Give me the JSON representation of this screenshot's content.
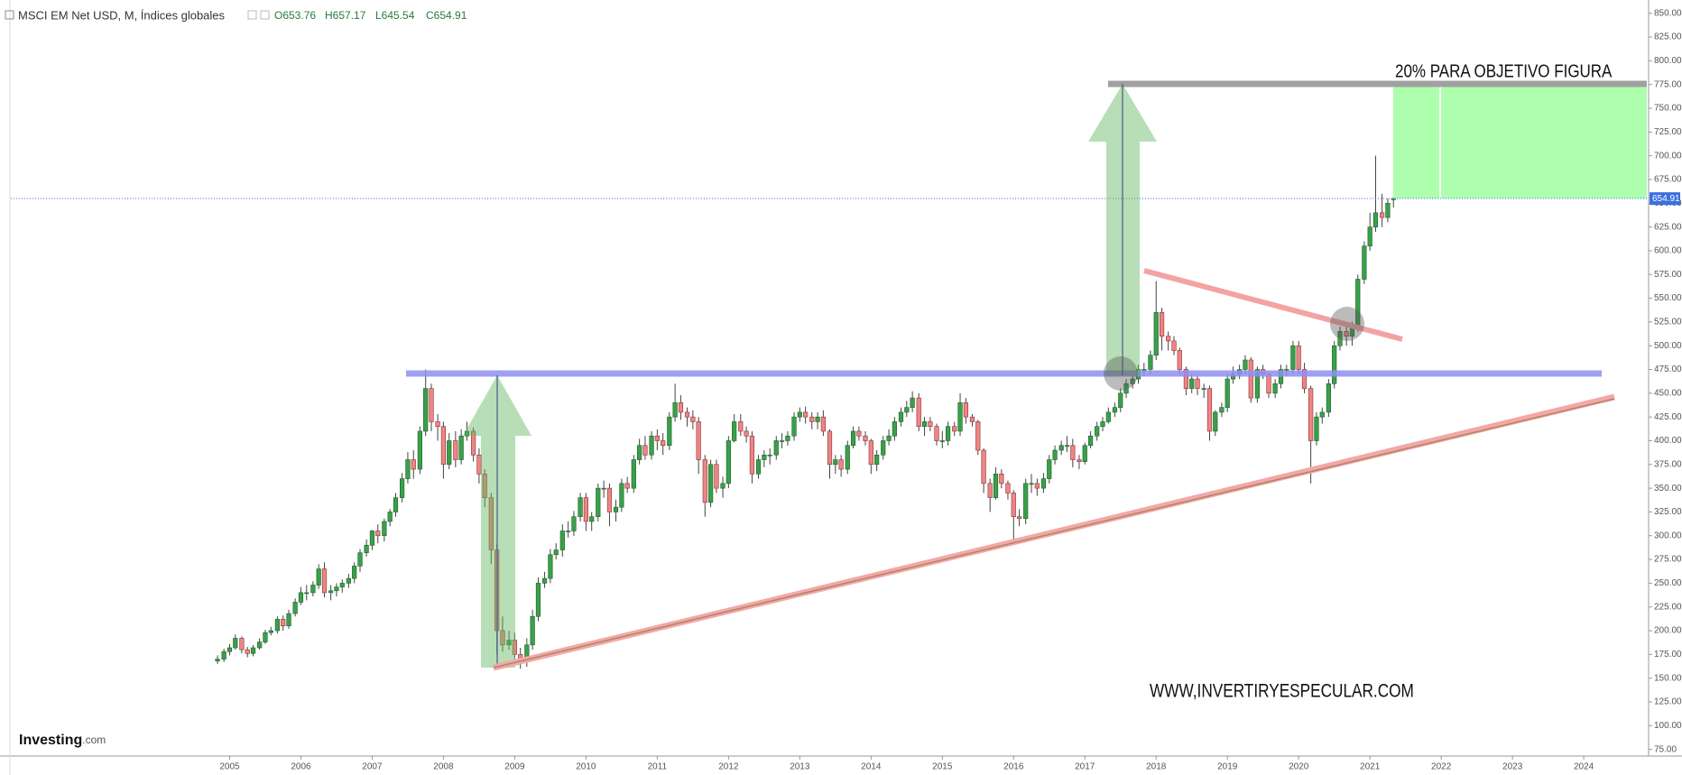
{
  "header": {
    "title": "MSCI EM Net USD, M, Índices globales",
    "ohlc": [
      "O653.76",
      "H657.17",
      "L645.54",
      "C654.91"
    ]
  },
  "chart_data": {
    "type": "candlestick",
    "x": [
      2004.83,
      2004.92,
      2005,
      2005.08,
      2005.17,
      2005.25,
      2005.33,
      2005.42,
      2005.5,
      2005.58,
      2005.67,
      2005.75,
      2005.83,
      2005.92,
      2006,
      2006.08,
      2006.17,
      2006.25,
      2006.33,
      2006.42,
      2006.5,
      2006.58,
      2006.67,
      2006.75,
      2006.83,
      2006.92,
      2007,
      2007.08,
      2007.17,
      2007.25,
      2007.33,
      2007.42,
      2007.5,
      2007.58,
      2007.67,
      2007.75,
      2007.83,
      2007.92,
      2008,
      2008.08,
      2008.17,
      2008.25,
      2008.33,
      2008.42,
      2008.5,
      2008.58,
      2008.67,
      2008.75,
      2008.83,
      2008.92,
      2009,
      2009.08,
      2009.17,
      2009.25,
      2009.33,
      2009.42,
      2009.5,
      2009.58,
      2009.67,
      2009.75,
      2009.83,
      2009.92,
      2010,
      2010.08,
      2010.17,
      2010.25,
      2010.33,
      2010.42,
      2010.5,
      2010.58,
      2010.67,
      2010.75,
      2010.83,
      2010.92,
      2011,
      2011.08,
      2011.17,
      2011.25,
      2011.33,
      2011.42,
      2011.5,
      2011.58,
      2011.67,
      2011.75,
      2011.83,
      2011.92,
      2012,
      2012.08,
      2012.17,
      2012.25,
      2012.33,
      2012.42,
      2012.5,
      2012.58,
      2012.67,
      2012.75,
      2012.83,
      2012.92,
      2013,
      2013.08,
      2013.17,
      2013.25,
      2013.33,
      2013.42,
      2013.5,
      2013.58,
      2013.67,
      2013.75,
      2013.83,
      2013.92,
      2014,
      2014.08,
      2014.17,
      2014.25,
      2014.33,
      2014.42,
      2014.5,
      2014.58,
      2014.67,
      2014.75,
      2014.83,
      2014.92,
      2015,
      2015.08,
      2015.17,
      2015.25,
      2015.33,
      2015.42,
      2015.5,
      2015.58,
      2015.67,
      2015.75,
      2015.83,
      2015.92,
      2016,
      2016.08,
      2016.17,
      2016.25,
      2016.33,
      2016.42,
      2016.5,
      2016.58,
      2016.67,
      2016.75,
      2016.83,
      2016.92,
      2017,
      2017.08,
      2017.17,
      2017.25,
      2017.33,
      2017.42,
      2017.5,
      2017.58,
      2017.67,
      2017.75,
      2017.83,
      2017.92,
      2018,
      2018.08,
      2018.17,
      2018.25,
      2018.33,
      2018.42,
      2018.5,
      2018.58,
      2018.67,
      2018.75,
      2018.83,
      2018.92,
      2019,
      2019.08,
      2019.17,
      2019.25,
      2019.33,
      2019.42,
      2019.5,
      2019.58,
      2019.67,
      2019.75,
      2019.83,
      2019.92,
      2020,
      2020.08,
      2020.17,
      2020.25,
      2020.33,
      2020.42,
      2020.5,
      2020.58,
      2020.67,
      2020.75,
      2020.83,
      2020.92,
      2021,
      2021.08,
      2021.17,
      2021.25,
      2021.33
    ],
    "open": [
      168,
      170,
      178,
      182,
      192,
      180,
      176,
      182,
      188,
      198,
      200,
      212,
      205,
      218,
      230,
      240,
      240,
      248,
      265,
      240,
      242,
      246,
      250,
      255,
      268,
      282,
      290,
      305,
      300,
      315,
      325,
      340,
      360,
      380,
      370,
      410,
      455,
      420,
      415,
      375,
      400,
      380,
      405,
      410,
      385,
      365,
      340,
      285,
      200,
      185,
      190,
      175,
      168,
      185,
      215,
      250,
      255,
      280,
      285,
      305,
      305,
      320,
      340,
      315,
      320,
      350,
      350,
      325,
      330,
      355,
      350,
      380,
      395,
      385,
      405,
      400,
      395,
      425,
      440,
      430,
      425,
      420,
      380,
      335,
      375,
      350,
      355,
      400,
      420,
      410,
      405,
      365,
      380,
      385,
      385,
      400,
      400,
      405,
      425,
      430,
      425,
      420,
      425,
      410,
      375,
      380,
      370,
      395,
      410,
      405,
      400,
      375,
      385,
      400,
      405,
      420,
      430,
      435,
      445,
      415,
      420,
      415,
      400,
      400,
      415,
      410,
      440,
      425,
      420,
      390,
      355,
      340,
      365,
      355,
      345,
      320,
      318,
      355,
      355,
      350,
      360,
      380,
      390,
      395,
      395,
      380,
      378,
      395,
      405,
      415,
      420,
      430,
      435,
      450,
      460,
      465,
      475,
      475,
      490,
      535,
      510,
      505,
      495,
      475,
      455,
      465,
      455,
      455,
      410,
      430,
      435,
      465,
      470,
      475,
      485,
      445,
      475,
      470,
      450,
      460,
      475,
      475,
      500,
      475,
      455,
      400,
      425,
      430,
      460,
      500,
      515,
      510,
      520,
      570,
      605,
      625,
      640,
      635,
      653.76
    ],
    "high": [
      174,
      181,
      186,
      196,
      194,
      183,
      185,
      192,
      201,
      204,
      215,
      216,
      222,
      234,
      246,
      248,
      252,
      270,
      272,
      248,
      250,
      254,
      260,
      272,
      286,
      296,
      306,
      312,
      318,
      328,
      345,
      366,
      388,
      390,
      415,
      475,
      460,
      428,
      420,
      408,
      410,
      412,
      420,
      414,
      392,
      370,
      345,
      292,
      215,
      200,
      198,
      182,
      192,
      222,
      256,
      262,
      286,
      292,
      312,
      315,
      326,
      345,
      345,
      325,
      355,
      358,
      355,
      338,
      360,
      362,
      385,
      402,
      405,
      410,
      412,
      408,
      430,
      460,
      448,
      435,
      432,
      425,
      385,
      380,
      380,
      362,
      405,
      428,
      428,
      415,
      410,
      385,
      390,
      392,
      405,
      408,
      410,
      430,
      435,
      436,
      430,
      430,
      432,
      412,
      385,
      385,
      400,
      415,
      415,
      410,
      402,
      390,
      405,
      412,
      425,
      435,
      442,
      452,
      450,
      425,
      425,
      418,
      410,
      420,
      420,
      450,
      445,
      428,
      422,
      392,
      360,
      372,
      370,
      358,
      348,
      328,
      360,
      365,
      360,
      366,
      385,
      395,
      400,
      405,
      402,
      385,
      398,
      410,
      420,
      425,
      435,
      440,
      455,
      465,
      470,
      480,
      482,
      495,
      568,
      540,
      515,
      510,
      498,
      478,
      470,
      468,
      460,
      458,
      432,
      440,
      470,
      478,
      480,
      490,
      488,
      478,
      480,
      472,
      465,
      480,
      480,
      505,
      505,
      482,
      458,
      430,
      435,
      465,
      505,
      520,
      525,
      525,
      575,
      610,
      640,
      700,
      660,
      655,
      657.17
    ],
    "low": [
      165,
      167,
      174,
      180,
      176,
      172,
      173,
      180,
      186,
      195,
      197,
      200,
      202,
      215,
      227,
      232,
      236,
      244,
      235,
      232,
      236,
      240,
      245,
      250,
      262,
      278,
      285,
      292,
      294,
      310,
      320,
      335,
      355,
      360,
      365,
      405,
      410,
      400,
      360,
      370,
      372,
      375,
      400,
      378,
      355,
      330,
      270,
      175,
      178,
      180,
      170,
      160,
      162,
      180,
      210,
      245,
      250,
      275,
      278,
      298,
      300,
      315,
      305,
      305,
      315,
      340,
      310,
      315,
      325,
      345,
      345,
      375,
      380,
      380,
      390,
      385,
      390,
      420,
      422,
      415,
      412,
      365,
      320,
      330,
      345,
      340,
      350,
      398,
      405,
      398,
      355,
      360,
      372,
      375,
      380,
      392,
      395,
      400,
      420,
      418,
      412,
      412,
      405,
      360,
      365,
      362,
      365,
      392,
      400,
      395,
      365,
      368,
      380,
      395,
      400,
      415,
      425,
      430,
      410,
      405,
      410,
      395,
      392,
      395,
      405,
      405,
      418,
      415,
      385,
      345,
      325,
      338,
      350,
      338,
      295,
      310,
      312,
      345,
      342,
      345,
      355,
      375,
      385,
      388,
      372,
      370,
      375,
      392,
      400,
      410,
      418,
      425,
      430,
      445,
      455,
      460,
      468,
      470,
      485,
      495,
      495,
      490,
      470,
      448,
      450,
      448,
      445,
      400,
      405,
      425,
      430,
      460,
      465,
      470,
      440,
      440,
      465,
      445,
      445,
      455,
      468,
      470,
      470,
      450,
      355,
      395,
      418,
      425,
      455,
      495,
      500,
      500,
      515,
      565,
      600,
      620,
      625,
      630,
      645.54
    ],
    "close": [
      170,
      178,
      182,
      192,
      180,
      176,
      182,
      188,
      198,
      200,
      212,
      205,
      218,
      230,
      240,
      240,
      248,
      265,
      240,
      242,
      246,
      250,
      255,
      268,
      282,
      290,
      305,
      300,
      315,
      325,
      340,
      360,
      380,
      370,
      410,
      455,
      420,
      415,
      375,
      400,
      380,
      405,
      410,
      385,
      365,
      340,
      285,
      200,
      185,
      190,
      175,
      168,
      185,
      215,
      250,
      255,
      280,
      285,
      305,
      305,
      320,
      340,
      315,
      320,
      350,
      350,
      325,
      330,
      355,
      350,
      380,
      395,
      385,
      405,
      400,
      395,
      425,
      440,
      430,
      425,
      420,
      380,
      335,
      375,
      350,
      355,
      400,
      420,
      410,
      405,
      365,
      380,
      385,
      385,
      400,
      400,
      405,
      425,
      430,
      425,
      420,
      425,
      410,
      375,
      380,
      370,
      395,
      410,
      405,
      400,
      375,
      385,
      400,
      405,
      420,
      430,
      435,
      445,
      415,
      420,
      415,
      400,
      400,
      415,
      410,
      440,
      425,
      420,
      390,
      355,
      340,
      365,
      355,
      345,
      320,
      318,
      355,
      355,
      350,
      360,
      380,
      390,
      395,
      395,
      380,
      378,
      395,
      405,
      415,
      420,
      430,
      435,
      450,
      460,
      465,
      475,
      475,
      490,
      535,
      510,
      505,
      495,
      475,
      455,
      465,
      455,
      455,
      410,
      430,
      435,
      465,
      470,
      475,
      485,
      445,
      475,
      470,
      450,
      460,
      475,
      475,
      500,
      475,
      455,
      400,
      425,
      430,
      460,
      500,
      515,
      510,
      520,
      570,
      605,
      625,
      640,
      635,
      650,
      654.91
    ],
    "up_color": "#3aa04a",
    "down_color": "#ee8585",
    "xlim": [
      2001.93,
      2024.91
    ],
    "xticks": [
      2005,
      2006,
      2007,
      2008,
      2009,
      2010,
      2011,
      2012,
      2013,
      2014,
      2015,
      2016,
      2017,
      2018,
      2019,
      2020,
      2021,
      2022,
      2023,
      2024
    ],
    "ylim": [
      68,
      864
    ],
    "yticks": [
      {
        "value": 75,
        "label": "75.00"
      },
      {
        "value": 100,
        "label": "100.00"
      },
      {
        "value": 125,
        "label": "125.00"
      },
      {
        "value": 150,
        "label": "150.00"
      },
      {
        "value": 175,
        "label": "175.00"
      },
      {
        "value": 200,
        "label": "200.00"
      },
      {
        "value": 225,
        "label": "225.00"
      },
      {
        "value": 250,
        "label": "250.00"
      },
      {
        "value": 275,
        "label": "275.00"
      },
      {
        "value": 300,
        "label": "300.00"
      },
      {
        "value": 325,
        "label": "325.00"
      },
      {
        "value": 350,
        "label": "350.00"
      },
      {
        "value": 375,
        "label": "375.00"
      },
      {
        "value": 400,
        "label": "400.00"
      },
      {
        "value": 425,
        "label": "425.00"
      },
      {
        "value": 450,
        "label": "450.00"
      },
      {
        "value": 475,
        "label": "475.00"
      },
      {
        "value": 500,
        "label": "500.00"
      },
      {
        "value": 525,
        "label": "525.00"
      },
      {
        "value": 550,
        "label": "550.00"
      },
      {
        "value": 575,
        "label": "575.00"
      },
      {
        "value": 600,
        "label": "600.00"
      },
      {
        "value": 625,
        "label": "625.00"
      },
      {
        "value": 650,
        "label": "650.00"
      },
      {
        "value": 675,
        "label": "675.00"
      },
      {
        "value": 700,
        "label": "700.00"
      },
      {
        "value": 725,
        "label": "725.00"
      },
      {
        "value": 750,
        "label": "750.00"
      },
      {
        "value": 775,
        "label": "775.00"
      },
      {
        "value": 800,
        "label": "800.00"
      },
      {
        "value": 825,
        "label": "825.00"
      },
      {
        "value": 850,
        "label": "850.00"
      }
    ],
    "last_price_label": "654.91",
    "annotations": [
      "20% PARA OBJETIVO FIGURA",
      "WWW,INVERTIRYESPECULAR.COM"
    ]
  },
  "branding": {
    "name": "Investing",
    "suffix": ".com"
  }
}
